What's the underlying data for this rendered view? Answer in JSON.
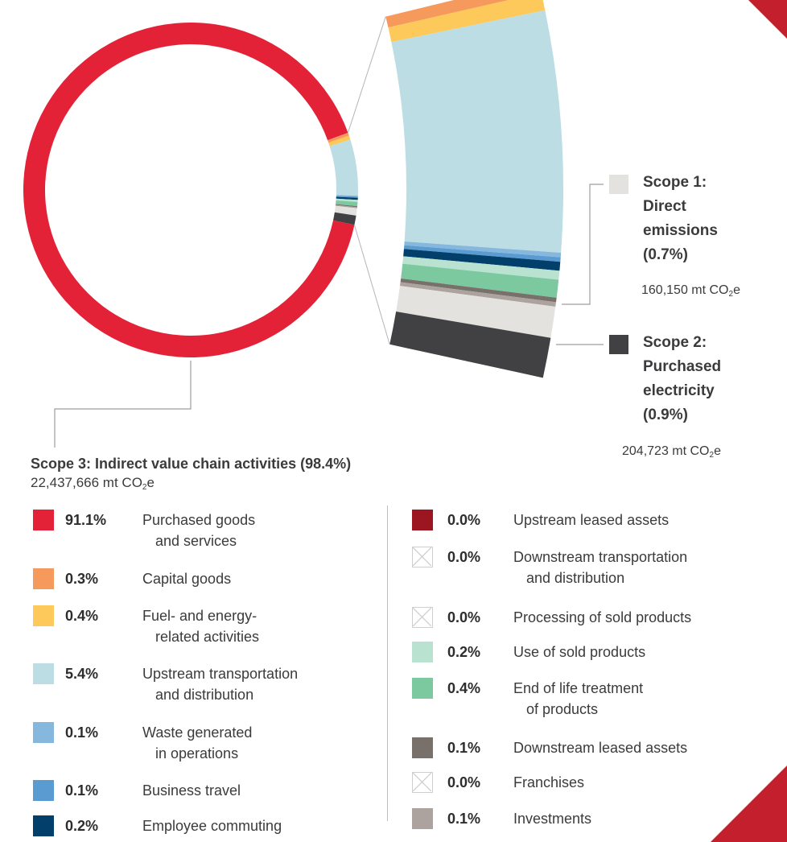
{
  "chart_data": {
    "type": "pie",
    "style": "donut-with-exploded-segment",
    "scope1": {
      "title_lines": [
        "Scope 1:",
        "Direct",
        "emissions",
        "(0.7%)"
      ],
      "value_text": "160,150 mt CO",
      "value_sub": "2",
      "value_suffix": "e",
      "percent": 0.7,
      "color": "#e3e2de"
    },
    "scope2": {
      "title_lines": [
        "Scope 2:",
        "Purchased",
        "electricity",
        "(0.9%)"
      ],
      "value_text": "204,723 mt CO",
      "value_sub": "2",
      "value_suffix": "e",
      "percent": 0.9,
      "color": "#414143"
    },
    "scope3": {
      "title": "Scope 3: Indirect value chain activities (98.4%)",
      "value_text": "22,437,666 mt CO",
      "value_sub": "2",
      "value_suffix": "e",
      "percent": 98.4
    },
    "categories": [
      {
        "pct": "0.3%",
        "value": 0.3,
        "label": [
          "Capital goods"
        ],
        "color": "#f59a5c"
      },
      {
        "pct": "0.4%",
        "value": 0.4,
        "label": [
          "Fuel- and energy-",
          "related activities"
        ],
        "color": "#fdc95a"
      },
      {
        "pct": "5.4%",
        "value": 5.4,
        "label": [
          "Upstream transportation",
          "and distribution"
        ],
        "color": "#bcdde3"
      },
      {
        "pct": "0.1%",
        "value": 0.1,
        "label": [
          "Waste generated",
          "in operations"
        ],
        "color": "#86b7dc"
      },
      {
        "pct": "0.1%",
        "value": 0.1,
        "label": [
          "Business travel"
        ],
        "color": "#5a9bd1"
      },
      {
        "pct": "0.2%",
        "value": 0.2,
        "label": [
          "Employee commuting"
        ],
        "color": "#023f6b"
      },
      {
        "pct": "0.0%",
        "value": 0.0,
        "label": [
          "Upstream leased assets"
        ],
        "color": "#9b1620"
      },
      {
        "pct": "0.0%",
        "value": 0.0,
        "label": [
          "Downstream transportation",
          "and distribution"
        ],
        "color": "none"
      },
      {
        "pct": "0.0%",
        "value": 0.0,
        "label": [
          "Processing of sold products"
        ],
        "color": "none"
      },
      {
        "pct": "0.2%",
        "value": 0.2,
        "label": [
          "Use of sold products"
        ],
        "color": "#b9e2d0"
      },
      {
        "pct": "0.4%",
        "value": 0.4,
        "label": [
          "End of life treatment",
          "of products"
        ],
        "color": "#7cc9a0"
      },
      {
        "pct": "0.1%",
        "value": 0.1,
        "label": [
          "Downstream leased assets"
        ],
        "color": "#77706b"
      },
      {
        "pct": "0.0%",
        "value": 0.0,
        "label": [
          "Franchises"
        ],
        "color": "none"
      },
      {
        "pct": "0.1%",
        "value": 0.1,
        "label": [
          "Investments"
        ],
        "color": "#aca39f"
      }
    ],
    "main_category": {
      "pct": "91.1%",
      "value": 91.1,
      "label": [
        "Purchased goods",
        "and services"
      ],
      "color": "#e32238"
    }
  },
  "corner_color": "#c41f2c"
}
